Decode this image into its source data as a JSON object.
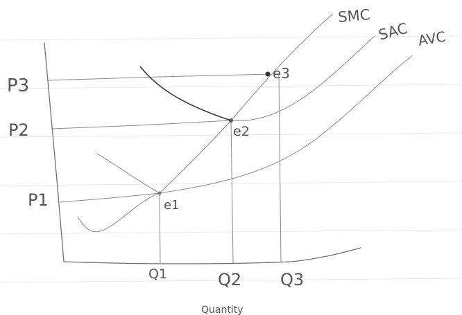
{
  "diagram": {
    "price_labels": [
      "P3",
      "P2",
      "P1"
    ],
    "quantity_labels": [
      "Q1",
      "Q2",
      "Q3"
    ],
    "curve_labels": [
      "SMC",
      "SAC",
      "AVC"
    ],
    "point_labels": [
      "e3",
      "e2",
      "e1"
    ],
    "x_axis_label": "Quantity"
  }
}
